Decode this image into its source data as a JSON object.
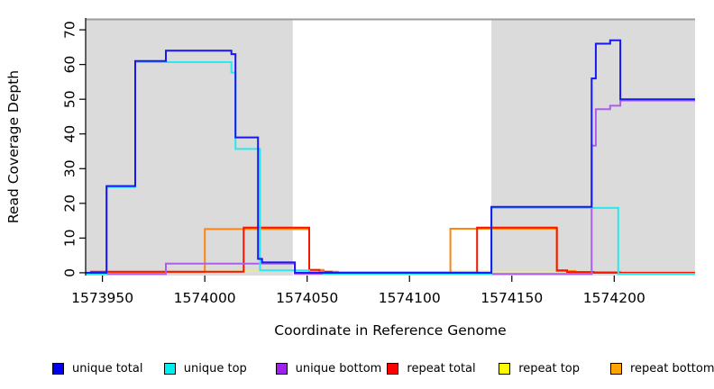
{
  "chart_data": {
    "type": "line",
    "subtype": "step-coverage",
    "title": "",
    "xlabel": "Coordinate in Reference Genome",
    "ylabel": "Read Coverage Depth",
    "xlim": [
      1573941.8,
      1574239.5
    ],
    "ylim": [
      -0.8,
      73.4
    ],
    "x_ticks": [
      1573950,
      1574000,
      1574050,
      1574100,
      1574150,
      1574200
    ],
    "y_ticks": [
      0,
      10,
      20,
      30,
      40,
      50,
      60,
      70
    ],
    "grid": false,
    "legend_position": "bottom",
    "axis_color": "#000000",
    "shaded_regions": [
      {
        "x0": 1573941.8,
        "x1": 1574043,
        "color": "#DBDBDB"
      },
      {
        "x0": 1574140,
        "x1": 1574239.5,
        "color": "#DBDBDB"
      }
    ],
    "top_boundary_line": {
      "y": 73,
      "color": "#9C9C9C"
    },
    "x_end": 1574239.5,
    "series": [
      {
        "name": "unique total",
        "color": "#0000EE",
        "line_color": "#1717EE",
        "width": 2,
        "draw_order": 5,
        "points": [
          [
            1573942,
            0
          ],
          [
            1573952,
            25
          ],
          [
            1573966,
            61
          ],
          [
            1573981,
            64
          ],
          [
            1574013,
            63
          ],
          [
            1574015,
            39
          ],
          [
            1574026,
            4
          ],
          [
            1574028,
            3
          ],
          [
            1574044,
            0
          ],
          [
            1574140,
            19
          ],
          [
            1574189,
            56
          ],
          [
            1574191,
            66
          ],
          [
            1574198,
            67
          ],
          [
            1574203,
            50
          ]
        ]
      },
      {
        "name": "unique top",
        "color": "#00EEEE",
        "line_color": "#2AE8EE",
        "width": 2,
        "draw_order": 4,
        "points": [
          [
            1573942,
            0
          ],
          [
            1573952,
            25
          ],
          [
            1573966,
            61
          ],
          [
            1574013,
            58
          ],
          [
            1574015,
            36
          ],
          [
            1574027,
            1
          ],
          [
            1574051,
            0.5
          ],
          [
            1574058,
            0
          ],
          [
            1574140,
            19
          ],
          [
            1574202,
            0
          ]
        ]
      },
      {
        "name": "unique bottom",
        "color": "#A020F0",
        "line_color": "#AE5CEE",
        "width": 2,
        "draw_order": 3,
        "points": [
          [
            1573942,
            0
          ],
          [
            1573981,
            3
          ],
          [
            1574044,
            0
          ],
          [
            1574189,
            37
          ],
          [
            1574191,
            47.5
          ],
          [
            1574198,
            48.5
          ],
          [
            1574203,
            50
          ]
        ]
      },
      {
        "name": "repeat total",
        "color": "#FF0000",
        "line_color": "#F51500",
        "width": 2,
        "draw_order": 2,
        "points": [
          [
            1573944,
            0.3
          ],
          [
            1574019,
            13
          ],
          [
            1574051,
            0.8
          ],
          [
            1574056,
            0.3
          ],
          [
            1574062,
            0
          ],
          [
            1574133,
            13
          ],
          [
            1574172,
            0.7
          ],
          [
            1574177,
            0.2
          ],
          [
            1574190,
            0
          ]
        ]
      },
      {
        "name": "repeat top",
        "color": "#FFFF00",
        "line_color": "#EFE98A",
        "width": 1.6,
        "draw_order": 0,
        "points": [
          [
            1573946,
            0.2
          ],
          [
            1574000,
            0.5
          ],
          [
            1574051,
            0.2
          ],
          [
            1574120,
            0.4
          ],
          [
            1574190,
            0.25
          ]
        ]
      },
      {
        "name": "repeat bottom",
        "color": "#FFA500",
        "line_color": "#FF8412",
        "width": 2,
        "draw_order": 1,
        "points": [
          [
            1573944,
            0.2
          ],
          [
            1574000,
            12.6
          ],
          [
            1574051,
            0.8
          ],
          [
            1574058,
            0.3
          ],
          [
            1574065,
            0
          ],
          [
            1574120,
            12.7
          ],
          [
            1574172,
            0.5
          ],
          [
            1574181,
            0.2
          ],
          [
            1574203,
            0
          ]
        ]
      }
    ]
  }
}
